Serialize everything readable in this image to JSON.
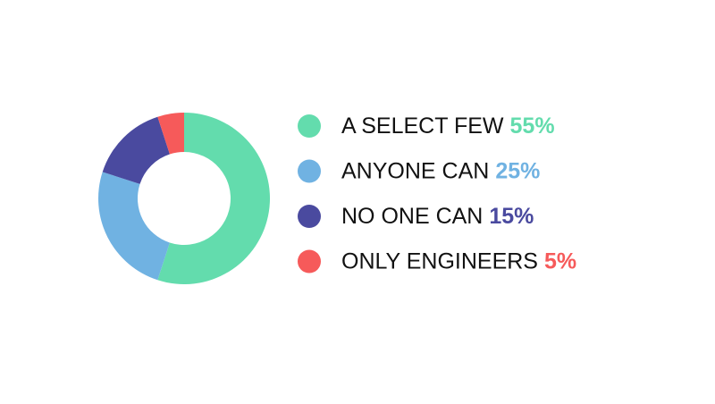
{
  "chart_data": {
    "type": "donut",
    "categories": [
      "A SELECT FEW",
      "ANYONE CAN",
      "NO ONE CAN",
      "ONLY ENGINEERS"
    ],
    "values": [
      55,
      25,
      15,
      5
    ],
    "value_labels": [
      "55%",
      "25%",
      "15%",
      "5%"
    ],
    "colors": [
      "#63dcad",
      "#70b2e2",
      "#4a4a9f",
      "#f65a5a"
    ]
  }
}
